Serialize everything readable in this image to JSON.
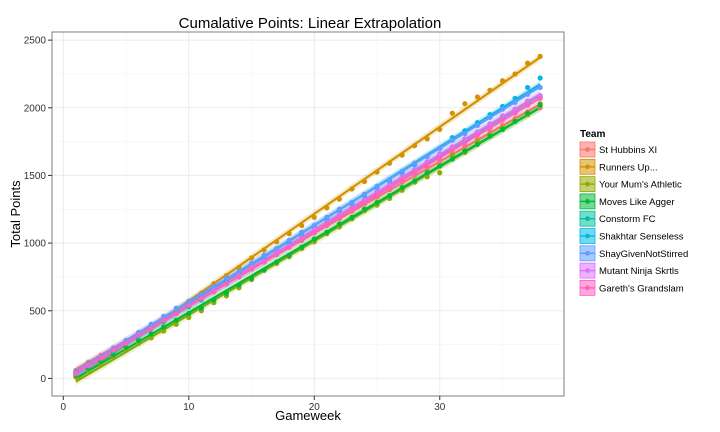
{
  "chart_data": {
    "type": "scatter",
    "title": "Cumalative Points: Linear Extrapolation",
    "xlabel": "Gameweek",
    "ylabel": "Total Points",
    "xlim": [
      -0.9,
      39.9
    ],
    "ylim": [
      -130,
      2560
    ],
    "x_ticks": [
      0,
      10,
      20,
      30
    ],
    "y_ticks": [
      0,
      500,
      1000,
      1500,
      2000,
      2500
    ],
    "grid": true,
    "legend_title": "Team",
    "legend_position": "right",
    "x": [
      1,
      2,
      3,
      4,
      5,
      6,
      7,
      8,
      9,
      10,
      11,
      12,
      13,
      14,
      15,
      16,
      17,
      18,
      19,
      20,
      21,
      22,
      23,
      24,
      25,
      26,
      27,
      28,
      29,
      30,
      31,
      32,
      33,
      34,
      35,
      36,
      37,
      38
    ],
    "series": [
      {
        "name": "St Hubbins XI",
        "color": "#F8766D",
        "values": [
          60,
          120,
          170,
          225,
          280,
          330,
          385,
          440,
          490,
          545,
          600,
          655,
          700,
          755,
          810,
          860,
          915,
          970,
          1020,
          1075,
          1130,
          1180,
          1235,
          1290,
          1340,
          1395,
          1450,
          1500,
          1550,
          1605,
          1660,
          1710,
          1765,
          1820,
          1870,
          1920,
          1970,
          2000
        ]
      },
      {
        "name": "Runners Up...",
        "color": "#D39200",
        "values": [
          30,
          80,
          140,
          205,
          265,
          325,
          385,
          440,
          500,
          565,
          630,
          700,
          760,
          820,
          890,
          950,
          1010,
          1070,
          1130,
          1190,
          1260,
          1325,
          1400,
          1455,
          1525,
          1590,
          1650,
          1720,
          1770,
          1840,
          1960,
          2030,
          2080,
          2130,
          2200,
          2250,
          2330,
          2380
        ]
      },
      {
        "name": "Your Mum's Athletic",
        "color": "#93AA00",
        "values": [
          10,
          60,
          110,
          160,
          210,
          260,
          300,
          350,
          400,
          450,
          500,
          560,
          610,
          670,
          730,
          800,
          850,
          900,
          960,
          1010,
          1070,
          1120,
          1180,
          1240,
          1280,
          1330,
          1390,
          1450,
          1490,
          1520,
          1650,
          1670,
          1750,
          1800,
          1850,
          1900,
          1950,
          2030
        ]
      },
      {
        "name": "Moves Like Agger",
        "color": "#00BA38",
        "values": [
          25,
          75,
          125,
          175,
          230,
          280,
          330,
          380,
          430,
          480,
          520,
          580,
          630,
          690,
          740,
          800,
          860,
          910,
          970,
          1030,
          1080,
          1140,
          1190,
          1250,
          1300,
          1350,
          1410,
          1460,
          1520,
          1570,
          1620,
          1680,
          1730,
          1790,
          1840,
          1900,
          1960,
          2020
        ]
      },
      {
        "name": "Constorm FC",
        "color": "#00C19F",
        "values": [
          40,
          90,
          150,
          200,
          260,
          310,
          370,
          420,
          480,
          530,
          580,
          640,
          700,
          750,
          810,
          860,
          920,
          980,
          1030,
          1090,
          1150,
          1200,
          1260,
          1310,
          1370,
          1430,
          1480,
          1540,
          1590,
          1650,
          1710,
          1760,
          1820,
          1880,
          1930,
          1990,
          2040,
          2080
        ]
      },
      {
        "name": "Shakhtar Senseless",
        "color": "#00B9E3",
        "values": [
          50,
          110,
          160,
          220,
          270,
          330,
          380,
          440,
          490,
          550,
          600,
          660,
          720,
          780,
          830,
          890,
          950,
          1000,
          1060,
          1120,
          1180,
          1240,
          1290,
          1350,
          1410,
          1460,
          1520,
          1580,
          1640,
          1700,
          1780,
          1830,
          1890,
          1950,
          2010,
          2070,
          2150,
          2220
        ]
      },
      {
        "name": "ShayGivenNotStirred",
        "color": "#619CFF",
        "values": [
          45,
          100,
          160,
          220,
          280,
          340,
          400,
          460,
          520,
          570,
          620,
          680,
          740,
          790,
          850,
          910,
          960,
          1020,
          1080,
          1130,
          1190,
          1250,
          1300,
          1360,
          1420,
          1470,
          1530,
          1590,
          1640,
          1700,
          1760,
          1810,
          1870,
          1930,
          1990,
          2040,
          2100,
          2150
        ]
      },
      {
        "name": "Mutant Ninja Skrtls",
        "color": "#DB72FB",
        "values": [
          35,
          95,
          150,
          210,
          260,
          320,
          370,
          430,
          480,
          540,
          590,
          650,
          700,
          760,
          820,
          870,
          930,
          980,
          1040,
          1100,
          1150,
          1210,
          1260,
          1320,
          1380,
          1430,
          1490,
          1540,
          1600,
          1660,
          1710,
          1770,
          1820,
          1880,
          1940,
          1990,
          2050,
          2090
        ]
      },
      {
        "name": "Gareth's Grandslam",
        "color": "#FF61C3",
        "values": [
          40,
          100,
          150,
          210,
          260,
          320,
          370,
          430,
          480,
          540,
          590,
          640,
          700,
          750,
          810,
          860,
          920,
          970,
          1030,
          1080,
          1140,
          1190,
          1250,
          1300,
          1360,
          1410,
          1470,
          1520,
          1580,
          1630,
          1690,
          1740,
          1800,
          1850,
          1910,
          1960,
          2020,
          2070
        ]
      }
    ]
  }
}
